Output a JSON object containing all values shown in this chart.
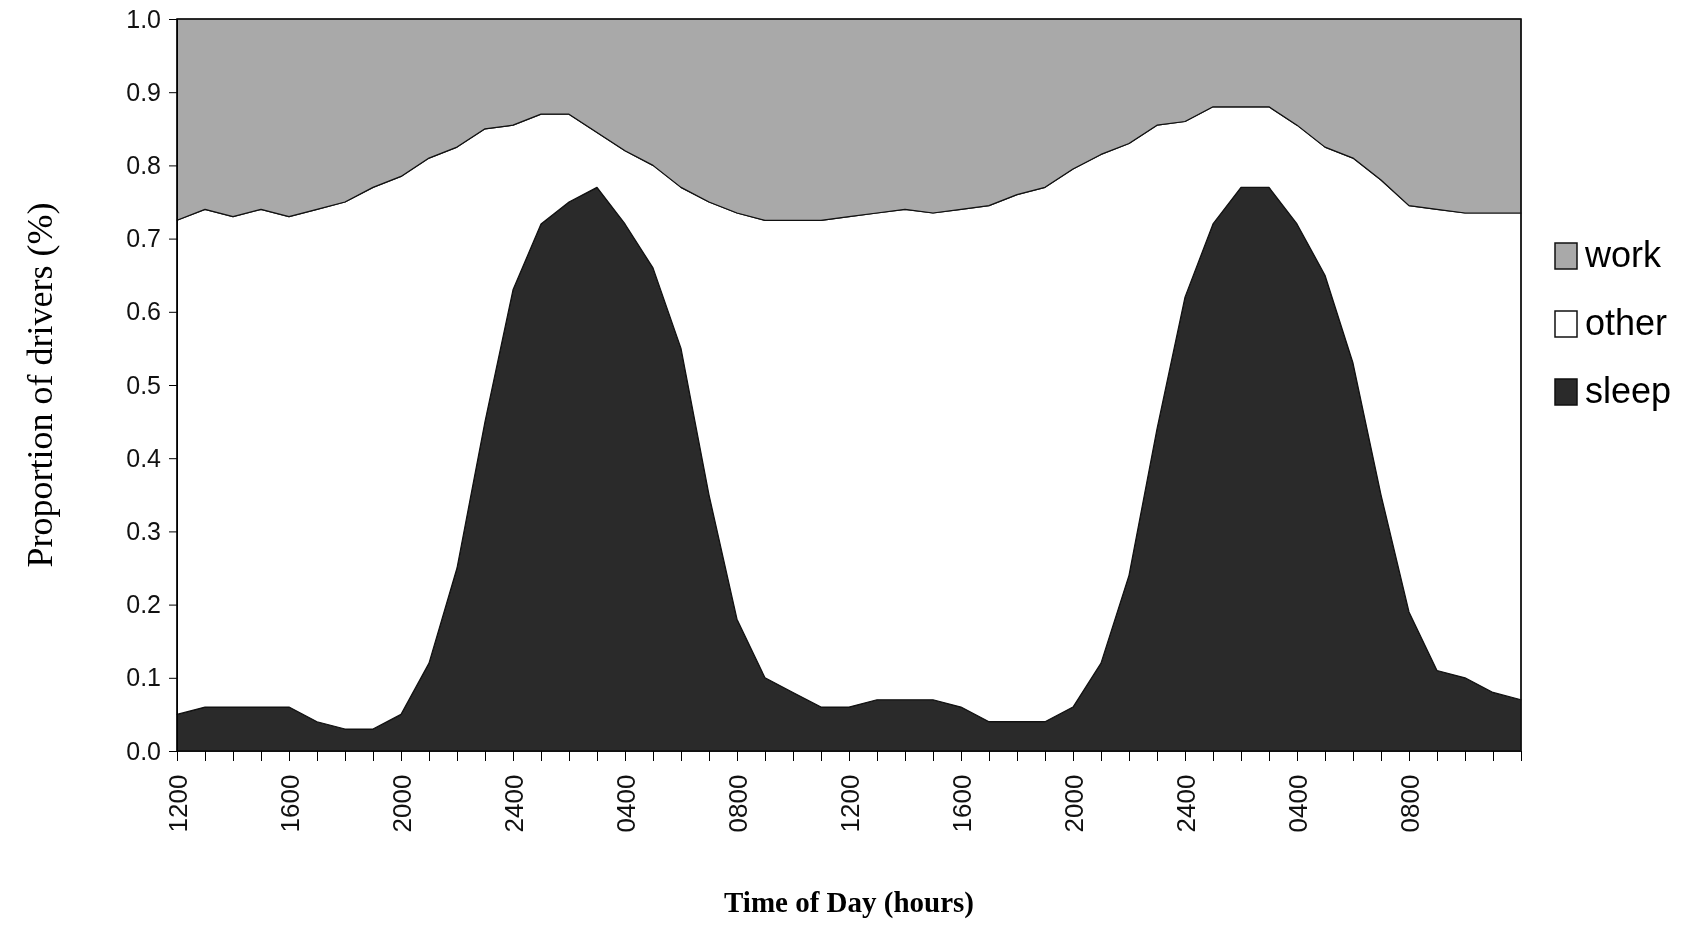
{
  "chart_data": {
    "type": "area",
    "stacked": true,
    "xlabel": "Time of Day (hours)",
    "ylabel": "Proportion of drivers (%)",
    "categories": [
      "1200",
      null,
      null,
      null,
      "1600",
      null,
      null,
      null,
      "2000",
      null,
      null,
      null,
      "2400",
      null,
      null,
      null,
      "0400",
      null,
      null,
      null,
      "0800",
      null,
      null,
      null,
      "1200",
      null,
      null,
      null,
      "1600",
      null,
      null,
      null,
      "2000",
      null,
      null,
      null,
      "2400",
      null,
      null,
      null,
      "0400",
      null,
      null,
      null,
      "0800",
      null,
      null,
      null,
      null
    ],
    "series": [
      {
        "name": "sleep",
        "color": "#2a2a2a",
        "values": [
          0.05,
          0.06,
          0.06,
          0.06,
          0.06,
          0.04,
          0.03,
          0.03,
          0.05,
          0.12,
          0.25,
          0.45,
          0.63,
          0.72,
          0.75,
          0.77,
          0.72,
          0.66,
          0.55,
          0.35,
          0.18,
          0.1,
          0.08,
          0.06,
          0.06,
          0.07,
          0.07,
          0.07,
          0.06,
          0.04,
          0.04,
          0.04,
          0.06,
          0.12,
          0.24,
          0.44,
          0.62,
          0.72,
          0.77,
          0.77,
          0.72,
          0.65,
          0.53,
          0.35,
          0.19,
          0.11,
          0.1,
          0.08,
          0.07
        ]
      },
      {
        "name": "other",
        "color": "#ffffff",
        "values": [
          0.675,
          0.68,
          0.67,
          0.68,
          0.67,
          0.7,
          0.72,
          0.74,
          0.735,
          0.69,
          0.575,
          0.4,
          0.225,
          0.15,
          0.12,
          0.075,
          0.1,
          0.14,
          0.22,
          0.4,
          0.555,
          0.625,
          0.645,
          0.665,
          0.67,
          0.665,
          0.67,
          0.665,
          0.68,
          0.705,
          0.72,
          0.73,
          0.735,
          0.695,
          0.59,
          0.415,
          0.24,
          0.16,
          0.11,
          0.11,
          0.135,
          0.175,
          0.28,
          0.43,
          0.555,
          0.63,
          0.635,
          0.655,
          0.665
        ]
      },
      {
        "name": "work",
        "color": "#a9a9a9",
        "values": [
          0.275,
          0.26,
          0.27,
          0.26,
          0.27,
          0.26,
          0.25,
          0.23,
          0.215,
          0.19,
          0.175,
          0.15,
          0.145,
          0.13,
          0.13,
          0.155,
          0.18,
          0.2,
          0.23,
          0.25,
          0.265,
          0.275,
          0.275,
          0.275,
          0.27,
          0.265,
          0.26,
          0.265,
          0.26,
          0.255,
          0.24,
          0.23,
          0.205,
          0.185,
          0.17,
          0.145,
          0.14,
          0.12,
          0.12,
          0.12,
          0.145,
          0.175,
          0.19,
          0.22,
          0.255,
          0.26,
          0.265,
          0.265,
          0.265
        ]
      }
    ],
    "ylim": [
      0,
      1
    ],
    "yticks": [
      {
        "value": 0,
        "label": "0.0"
      },
      {
        "value": 0.1,
        "label": "0.1"
      },
      {
        "value": 0.2,
        "label": "0.2"
      },
      {
        "value": 0.3,
        "label": "0.3"
      },
      {
        "value": 0.4,
        "label": "0.4"
      },
      {
        "value": 0.5,
        "label": "0.5"
      },
      {
        "value": 0.6,
        "label": "0.6"
      },
      {
        "value": 0.7,
        "label": "0.7"
      },
      {
        "value": 0.8,
        "label": "0.8"
      },
      {
        "value": 0.9,
        "label": "0.9"
      },
      {
        "value": 1,
        "label": "1.0"
      }
    ],
    "legend": "right"
  }
}
